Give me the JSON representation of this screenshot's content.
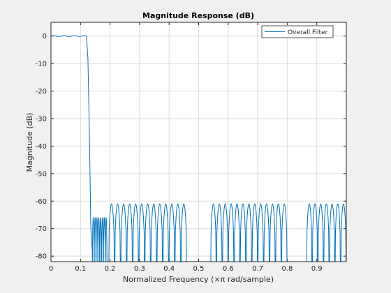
{
  "chart_data": {
    "type": "line",
    "title": "Magnitude Response (dB)",
    "xlabel": "Normalized Frequency (×π rad/sample)",
    "ylabel": "Magnitude (dB)",
    "xlim": [
      0,
      1
    ],
    "ylim": [
      -82,
      5
    ],
    "grid": true,
    "legend_position": "top-right",
    "x_ticks": [
      0,
      0.1,
      0.2,
      0.3,
      0.4,
      0.5,
      0.6,
      0.7,
      0.8,
      0.9
    ],
    "x_tick_labels": [
      "0",
      "0.1",
      "0.2",
      "0.3",
      "0.4",
      "0.5",
      "0.6",
      "0.7",
      "0.8",
      "0.9"
    ],
    "y_ticks": [
      0,
      -10,
      -20,
      -30,
      -40,
      -50,
      -60,
      -70,
      -80
    ],
    "y_tick_labels": [
      "0",
      "-10",
      "-20",
      "-30",
      "-40",
      "-50",
      "-60",
      "-70",
      "-80"
    ],
    "line_color": "#0072bd",
    "series": [
      {
        "name": "Overall Filter",
        "passband": {
          "x_start": 0,
          "x_end": 0.12,
          "level_db": 0
        },
        "transition": {
          "x": [
            0.12,
            0.125,
            0.13,
            0.135,
            0.14
          ],
          "y": [
            0,
            -8,
            -35,
            -70,
            -78
          ]
        },
        "stopband_lobes": [
          {
            "x_start": 0.14,
            "x_end": 0.19,
            "count": 8,
            "peak_db": -66
          },
          {
            "x_start": 0.195,
            "x_end": 0.46,
            "count": 13,
            "peak_db": -61
          },
          {
            "x_start": 0.54,
            "x_end": 0.8,
            "count": 13,
            "peak_db": -61
          },
          {
            "x_start": 0.865,
            "x_end": 1.0,
            "count": 7,
            "peak_db": -61
          }
        ]
      }
    ]
  }
}
